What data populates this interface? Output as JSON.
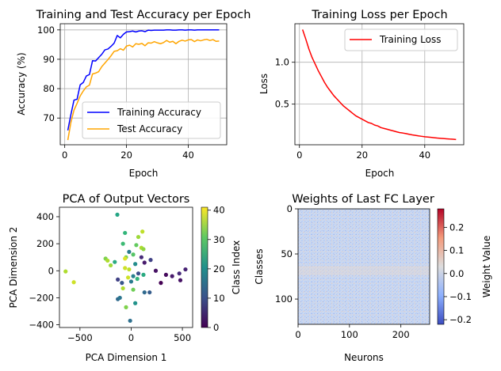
{
  "colors": {
    "train_acc": "#0000ff",
    "test_acc": "#ffa500",
    "train_loss": "#ff0000",
    "grid": "#b0b0b0"
  },
  "chart_data": [
    {
      "id": "acc",
      "type": "line",
      "title": "Training and Test Accuracy per Epoch",
      "xlabel": "Epoch",
      "ylabel": "Accuracy (%)",
      "xlim": [
        -1.45,
        52.45
      ],
      "ylim": [
        60.9,
        102.1
      ],
      "xticks": [
        0,
        20,
        40
      ],
      "yticks": [
        70,
        80,
        90,
        100
      ],
      "grid": true,
      "legend": "lower-right",
      "x": [
        1,
        2,
        3,
        4,
        5,
        6,
        7,
        8,
        9,
        10,
        11,
        12,
        13,
        14,
        15,
        16,
        17,
        18,
        19,
        20,
        21,
        22,
        23,
        24,
        25,
        26,
        27,
        28,
        29,
        30,
        31,
        32,
        33,
        34,
        35,
        36,
        37,
        38,
        39,
        40,
        41,
        42,
        43,
        44,
        45,
        46,
        47,
        48,
        49,
        50
      ],
      "series": [
        {
          "name": "Training Accuracy",
          "color": "#0000ff",
          "values": [
            65.8,
            71.2,
            76.1,
            76.4,
            81.3,
            82.1,
            84.3,
            84.8,
            89.5,
            89.4,
            90.6,
            91.7,
            93.2,
            93.5,
            94.4,
            95.5,
            98.1,
            97.3,
            98.5,
            99.3,
            99.4,
            99.6,
            99.3,
            99.6,
            99.7,
            99.4,
            99.9,
            99.8,
            99.9,
            99.9,
            99.9,
            99.9,
            100.0,
            100.0,
            99.9,
            99.9,
            100.0,
            100.0,
            99.9,
            100.0,
            100.0,
            99.9,
            100.0,
            100.0,
            100.0,
            100.0,
            100.0,
            100.0,
            100.0,
            100.0
          ]
        },
        {
          "name": "Test Accuracy",
          "color": "#ffa500",
          "values": [
            62.5,
            68.5,
            72.7,
            75.0,
            77.5,
            79.2,
            80.6,
            81.2,
            85.0,
            85.3,
            85.8,
            87.5,
            88.7,
            89.9,
            91.2,
            92.7,
            92.9,
            93.6,
            93.1,
            94.5,
            94.8,
            94.2,
            95.3,
            95.1,
            95.4,
            94.6,
            95.6,
            95.5,
            96.0,
            95.6,
            95.3,
            95.7,
            96.4,
            95.8,
            96.1,
            95.3,
            96.1,
            96.5,
            96.2,
            96.6,
            96.7,
            96.0,
            96.6,
            96.3,
            96.6,
            96.8,
            96.4,
            96.7,
            96.1,
            96.2
          ]
        }
      ]
    },
    {
      "id": "loss",
      "type": "line",
      "title": "Training Loss per Epoch",
      "xlabel": "Epoch",
      "ylabel": "Loss",
      "xlim": [
        -1.45,
        52.45
      ],
      "ylim": [
        0.015,
        1.46
      ],
      "xticks": [
        0,
        20,
        40
      ],
      "yticks": [
        0.5,
        1.0
      ],
      "ytick_labels": [
        "0.5",
        "1.0"
      ],
      "grid": true,
      "legend": "upper-right",
      "x": [
        1,
        2,
        3,
        4,
        5,
        6,
        7,
        8,
        9,
        10,
        11,
        12,
        13,
        14,
        15,
        16,
        17,
        18,
        19,
        20,
        21,
        22,
        23,
        24,
        25,
        26,
        27,
        28,
        29,
        30,
        31,
        32,
        33,
        34,
        35,
        36,
        37,
        38,
        39,
        40,
        41,
        42,
        43,
        44,
        45,
        46,
        47,
        48,
        49,
        50
      ],
      "series": [
        {
          "name": "Training Loss",
          "color": "#ff0000",
          "values": [
            1.39,
            1.28,
            1.16,
            1.06,
            0.98,
            0.9,
            0.83,
            0.76,
            0.7,
            0.65,
            0.6,
            0.56,
            0.52,
            0.48,
            0.45,
            0.42,
            0.39,
            0.36,
            0.34,
            0.32,
            0.3,
            0.28,
            0.27,
            0.25,
            0.24,
            0.22,
            0.21,
            0.2,
            0.19,
            0.18,
            0.17,
            0.16,
            0.155,
            0.148,
            0.14,
            0.133,
            0.127,
            0.121,
            0.116,
            0.111,
            0.107,
            0.103,
            0.099,
            0.095,
            0.092,
            0.089,
            0.086,
            0.083,
            0.081,
            0.078
          ]
        }
      ]
    },
    {
      "id": "pca",
      "type": "scatter",
      "title": "PCA of Output Vectors",
      "xlabel": "PCA Dimension 1",
      "ylabel": "PCA Dimension 2",
      "xlim": [
        -700,
        600
      ],
      "ylim": [
        -420,
        470
      ],
      "xticks": [
        -500,
        0,
        500
      ],
      "yticks": [
        -400,
        -200,
        0,
        200,
        400
      ],
      "colorbar": {
        "label": "Class Index",
        "min": 0,
        "max": 41,
        "ticks": [
          0,
          10,
          20,
          30,
          40
        ]
      },
      "points": [
        {
          "x": -640,
          "y": -5,
          "c": 36
        },
        {
          "x": -560,
          "y": -85,
          "c": 38
        },
        {
          "x": -135,
          "y": 415,
          "c": 24
        },
        {
          "x": -60,
          "y": 280,
          "c": 27
        },
        {
          "x": 70,
          "y": 250,
          "c": 35
        },
        {
          "x": 110,
          "y": 290,
          "c": 37
        },
        {
          "x": 50,
          "y": 190,
          "c": 31
        },
        {
          "x": -80,
          "y": 200,
          "c": 28
        },
        {
          "x": 100,
          "y": 170,
          "c": 36
        },
        {
          "x": -20,
          "y": 140,
          "c": 17
        },
        {
          "x": 120,
          "y": 160,
          "c": 34
        },
        {
          "x": -50,
          "y": 100,
          "c": 33
        },
        {
          "x": -60,
          "y": 90,
          "c": 39
        },
        {
          "x": 20,
          "y": 120,
          "c": 30
        },
        {
          "x": -250,
          "y": 90,
          "c": 33
        },
        {
          "x": -230,
          "y": 75,
          "c": 36
        },
        {
          "x": -200,
          "y": 40,
          "c": 35
        },
        {
          "x": -160,
          "y": 65,
          "c": 25
        },
        {
          "x": 100,
          "y": 100,
          "c": 5
        },
        {
          "x": 190,
          "y": 80,
          "c": 8
        },
        {
          "x": 130,
          "y": 60,
          "c": 3
        },
        {
          "x": 40,
          "y": 50,
          "c": 20
        },
        {
          "x": -60,
          "y": 20,
          "c": 38
        },
        {
          "x": -20,
          "y": 10,
          "c": 37
        },
        {
          "x": 70,
          "y": -20,
          "c": 10
        },
        {
          "x": 120,
          "y": -30,
          "c": 25
        },
        {
          "x": 240,
          "y": 0,
          "c": 2
        },
        {
          "x": 340,
          "y": -30,
          "c": 1
        },
        {
          "x": 400,
          "y": -40,
          "c": 3
        },
        {
          "x": 470,
          "y": -20,
          "c": 5
        },
        {
          "x": 530,
          "y": 10,
          "c": 4
        },
        {
          "x": 480,
          "y": -70,
          "c": 2
        },
        {
          "x": 20,
          "y": -40,
          "c": 18
        },
        {
          "x": -30,
          "y": -50,
          "c": 38
        },
        {
          "x": -130,
          "y": -65,
          "c": 8
        },
        {
          "x": -90,
          "y": -90,
          "c": 11
        },
        {
          "x": 0,
          "y": -80,
          "c": 17
        },
        {
          "x": 60,
          "y": -60,
          "c": 27
        },
        {
          "x": -80,
          "y": -130,
          "c": 36
        },
        {
          "x": 20,
          "y": -140,
          "c": 32
        },
        {
          "x": 130,
          "y": -160,
          "c": 14
        },
        {
          "x": 180,
          "y": -160,
          "c": 12
        },
        {
          "x": 290,
          "y": -90,
          "c": 0
        },
        {
          "x": -130,
          "y": -210,
          "c": 14
        },
        {
          "x": -110,
          "y": -200,
          "c": 16
        },
        {
          "x": 40,
          "y": -240,
          "c": 21
        },
        {
          "x": -50,
          "y": -270,
          "c": 33
        },
        {
          "x": -10,
          "y": -370,
          "c": 15
        }
      ]
    },
    {
      "id": "weights",
      "type": "heatmap",
      "title": "Weights of Last FC Layer",
      "xlabel": "Neurons",
      "ylabel": "Classes",
      "xlim": [
        0,
        256
      ],
      "ylim": [
        0,
        128
      ],
      "xticks": [
        0,
        100,
        200
      ],
      "yticks": [
        0,
        50,
        100
      ],
      "colorbar": {
        "label": "Weight Value",
        "min": -0.22,
        "max": 0.28,
        "ticks": [
          -0.2,
          -0.1,
          0.0,
          0.1,
          0.2
        ],
        "tick_labels": [
          "−0.2",
          "−0.1",
          "0.0",
          "0.1",
          "0.2"
        ],
        "colormap": "coolwarm"
      }
    }
  ]
}
